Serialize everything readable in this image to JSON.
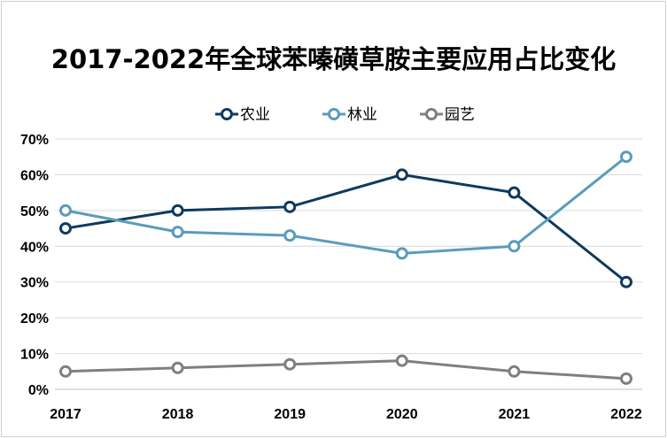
{
  "chart_data": {
    "type": "line",
    "title": "2017-2022年全球苯嗪磺草胺主要应用占比变化",
    "categories": [
      "2017",
      "2018",
      "2019",
      "2020",
      "2021",
      "2022"
    ],
    "series": [
      {
        "name": "农业",
        "values": [
          45,
          50,
          51,
          60,
          55,
          30
        ],
        "color": "#0e3a5e"
      },
      {
        "name": "林业",
        "values": [
          50,
          44,
          43,
          38,
          40,
          65
        ],
        "color": "#5b9bbc"
      },
      {
        "name": "园艺",
        "values": [
          5,
          6,
          7,
          8,
          5,
          3
        ],
        "color": "#7f7f7f"
      }
    ],
    "yticks": [
      "0%",
      "10%",
      "20%",
      "30%",
      "40%",
      "50%",
      "60%",
      "70%"
    ],
    "ylim": [
      0,
      70
    ],
    "grid": true,
    "legend": "top-center"
  }
}
